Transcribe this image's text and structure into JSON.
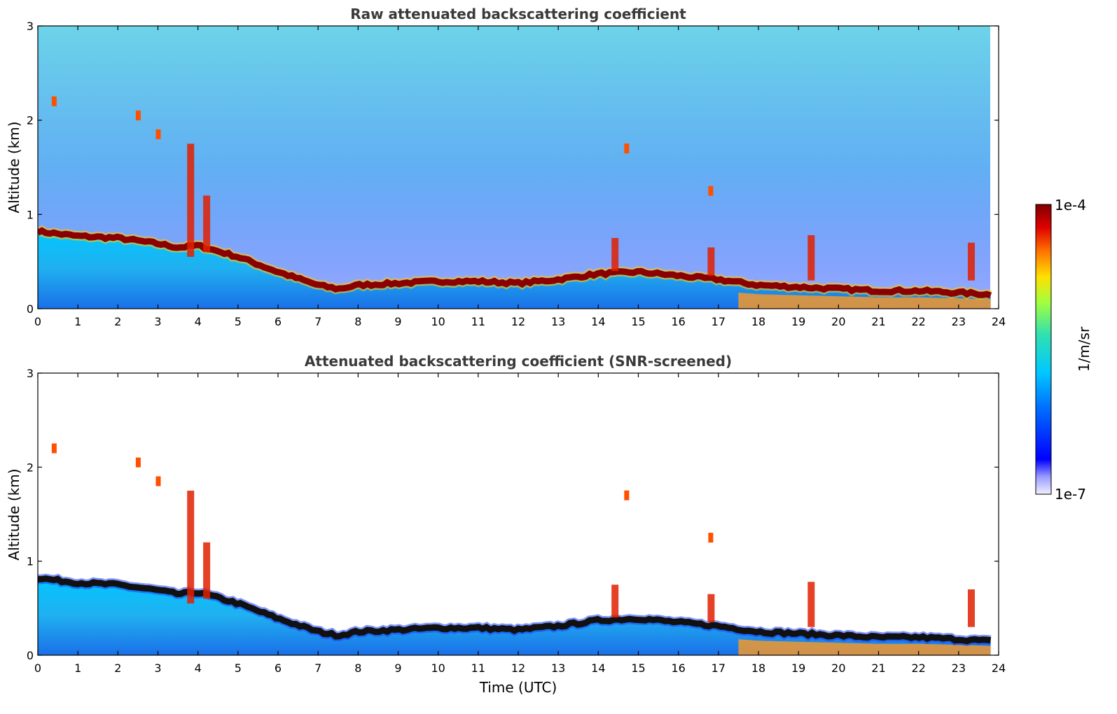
{
  "chart_data": [
    {
      "type": "heatmap",
      "title": "Raw attenuated backscattering coefficient",
      "xlabel": "",
      "ylabel": "Altitude (km)",
      "xlim": [
        0,
        24
      ],
      "ylim": [
        0,
        3
      ],
      "xticks": [
        "0",
        "1",
        "2",
        "3",
        "4",
        "5",
        "6",
        "7",
        "8",
        "9",
        "10",
        "11",
        "12",
        "13",
        "14",
        "15",
        "16",
        "17",
        "18",
        "19",
        "20",
        "21",
        "22",
        "23",
        "24"
      ],
      "yticks": [
        "0",
        "1",
        "2",
        "3"
      ],
      "boundary_layer_top_km": {
        "t": [
          0,
          1,
          2,
          3,
          3.5,
          4,
          5,
          6,
          7,
          7.5,
          8,
          9,
          10,
          11,
          12,
          13,
          14,
          15,
          16,
          17,
          18,
          19,
          20,
          21,
          22,
          23,
          23.8
        ],
        "h": [
          0.85,
          0.8,
          0.78,
          0.72,
          0.68,
          0.7,
          0.58,
          0.42,
          0.28,
          0.24,
          0.28,
          0.3,
          0.32,
          0.32,
          0.3,
          0.34,
          0.4,
          0.42,
          0.38,
          0.34,
          0.28,
          0.26,
          0.24,
          0.22,
          0.22,
          0.2,
          0.18
        ]
      },
      "colorbar": {
        "min_label": "1e-7",
        "max_label": "1e-4",
        "label": "1/m/sr"
      }
    },
    {
      "type": "heatmap",
      "title": "Attenuated backscattering coefficient (SNR-screened)",
      "xlabel": "Time (UTC)",
      "ylabel": "Altitude (km)",
      "xlim": [
        0,
        24
      ],
      "ylim": [
        0,
        3
      ],
      "xticks": [
        "0",
        "1",
        "2",
        "3",
        "4",
        "5",
        "6",
        "7",
        "8",
        "9",
        "10",
        "11",
        "12",
        "13",
        "14",
        "15",
        "16",
        "17",
        "18",
        "19",
        "20",
        "21",
        "22",
        "23",
        "24"
      ],
      "yticks": [
        "0",
        "1",
        "2",
        "3"
      ],
      "colorbar": {
        "min_label": "1e-7",
        "max_label": "1e-4",
        "label": "1/m/sr"
      }
    }
  ],
  "colorbar": {
    "max_label": "1e-4",
    "min_label": "1e-7",
    "unit_label": "1/m/sr"
  }
}
